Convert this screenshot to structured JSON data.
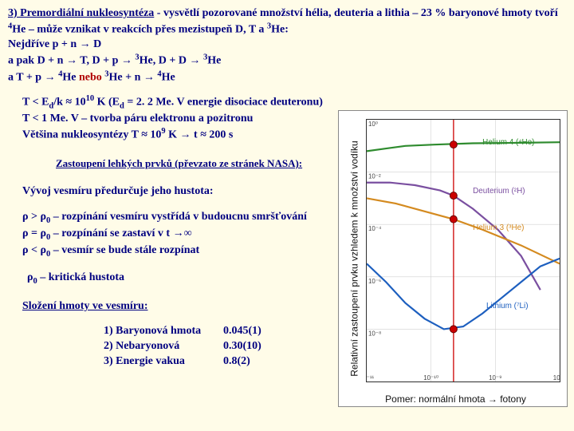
{
  "text": {
    "p1_a": "3) Premordiální nukleosyntéza",
    "p1_b": " - vysvětlí pozorované množství hélia, deuteria a lithia  – 23 % baryonové hmoty tvoří ",
    "p1_c": "He – může vznikat v reakcích přes mezistupeň D, T a ",
    "p1_d": "He:",
    "l1": "Nejdříve p + n → D",
    "l2a": "a pak D + n → T, D + p → ",
    "l2b": "He, D + D → ",
    "l2c": "He",
    "l3a": "a T + p → ",
    "l3b": "He",
    "l3c": "nebo",
    "l3d": "He + n → ",
    "l3e": "He",
    "t1a": "T  < E",
    "t1b": "/k ≈ 10",
    "t1c": " K (E",
    "t1d": " = 2. 2 Me. V energie disociace deuteronu)",
    "t2": "T < 1 Me. V – tvorba páru elektronu a pozitronu",
    "t3a": "Většina nukleosyntézy T ≈  10",
    "t3b": " K → t ≈  200 s",
    "caption": "Zastoupení lehkých prvků (převzato ze stránek NASA):",
    "dens": "Vývoj vesmíru předurčuje jeho hustota:",
    "r1": " – rozpínání vesmíru vystřídá v budoucnu smršťování",
    "r2": " – rozpínání se zastaví v t →∞",
    "r3": " – vesmír se bude stále rozpínat",
    "rc": " – kritická hustota",
    "comp_h": "Složení hmoty ve vesmíru:",
    "c1l": "1) Baryonová hmota",
    "c1v": "0.045(1)",
    "c2l": "2) Nebaryonová",
    "c2v": "0.30(10)",
    "c3l": "3) Energie vakua",
    "c3v": "0.8(2)"
  },
  "chart": {
    "ylabel": "Relativní zastoupení prvku vzhledem k množství vodíku",
    "xlabel": "Pomer:  normální hmota → fotony",
    "xticks": [
      "10⁻¹¹",
      "10⁻¹⁰",
      "10⁻⁹",
      "10⁻⁸"
    ],
    "yticks": [
      "10⁰",
      "10⁻²",
      "10⁻⁴",
      "10⁻⁶",
      "10⁻⁸",
      "10⁻¹⁰"
    ],
    "background_color": "#ffffff",
    "grid_color": "#d0d0d0",
    "axis_color": "#333333",
    "obs_line_x": 0.45,
    "obs_line_color": "#cc0000",
    "marker_color": "#cc0000",
    "marker_stroke": "#660000",
    "series": [
      {
        "name": "helium4",
        "label": "Helium 4 (⁴He)",
        "color": "#2e8b2e",
        "pts": [
          [
            0,
            0.12
          ],
          [
            0.1,
            0.11
          ],
          [
            0.2,
            0.1
          ],
          [
            0.35,
            0.095
          ],
          [
            0.55,
            0.09
          ],
          [
            0.8,
            0.088
          ],
          [
            1.0,
            0.086
          ]
        ],
        "label_xy": [
          0.6,
          0.095
        ],
        "marker_xy": [
          0.45,
          0.095
        ]
      },
      {
        "name": "deuterium",
        "label": "Deuterium (²H)",
        "color": "#7a4fa0",
        "pts": [
          [
            0,
            0.24
          ],
          [
            0.12,
            0.24
          ],
          [
            0.25,
            0.25
          ],
          [
            0.38,
            0.27
          ],
          [
            0.45,
            0.29
          ],
          [
            0.55,
            0.34
          ],
          [
            0.68,
            0.42
          ],
          [
            0.8,
            0.52
          ],
          [
            0.9,
            0.65
          ]
        ],
        "label_xy": [
          0.55,
          0.28
        ],
        "marker_xy": [
          0.45,
          0.29
        ]
      },
      {
        "name": "helium3",
        "label": "Helium 3 (³He)",
        "color": "#d48a1f",
        "pts": [
          [
            0,
            0.3
          ],
          [
            0.15,
            0.32
          ],
          [
            0.3,
            0.35
          ],
          [
            0.45,
            0.38
          ],
          [
            0.6,
            0.42
          ],
          [
            0.8,
            0.48
          ],
          [
            1.0,
            0.55
          ]
        ],
        "label_xy": [
          0.55,
          0.42
        ],
        "marker_xy": [
          0.45,
          0.38
        ]
      },
      {
        "name": "lithium",
        "label": "Lithium (⁷Li)",
        "color": "#1d5fbf",
        "pts": [
          [
            0,
            0.55
          ],
          [
            0.1,
            0.62
          ],
          [
            0.2,
            0.7
          ],
          [
            0.3,
            0.76
          ],
          [
            0.4,
            0.8
          ],
          [
            0.5,
            0.79
          ],
          [
            0.6,
            0.74
          ],
          [
            0.7,
            0.68
          ],
          [
            0.8,
            0.62
          ],
          [
            0.9,
            0.56
          ],
          [
            1.0,
            0.53
          ]
        ],
        "label_xy": [
          0.62,
          0.72
        ],
        "marker_xy": [
          0.45,
          0.8
        ]
      }
    ]
  }
}
